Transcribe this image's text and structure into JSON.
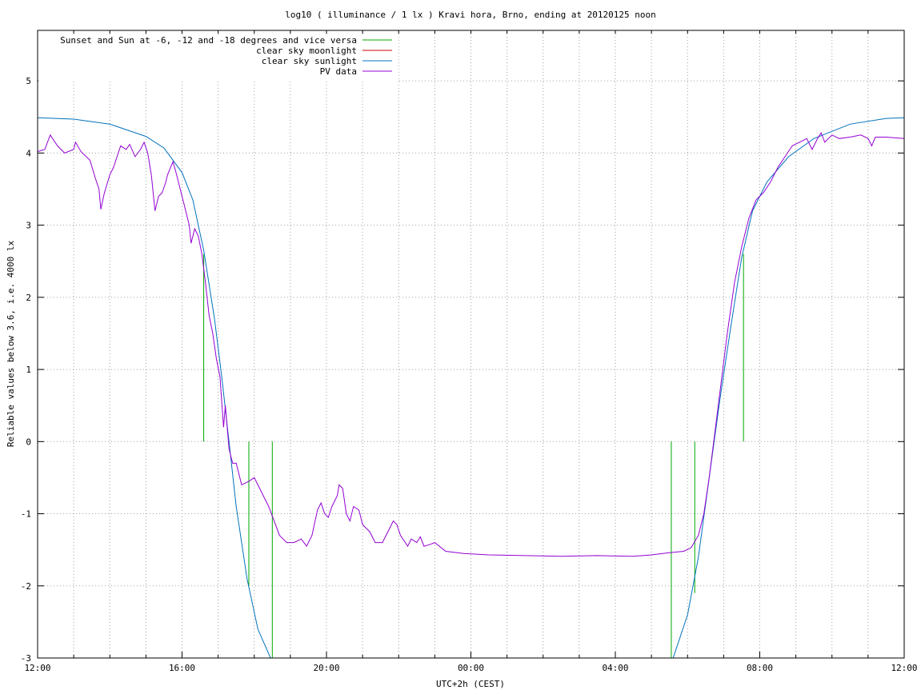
{
  "chart_data": {
    "type": "line",
    "title": "log10 ( illuminance / 1 lx ) Kravi hora, Brno, ending at 20120125 noon",
    "xlabel": "UTC+2h (CEST)",
    "ylabel": "Reliable values below 3.6, i.e. 4000 lx",
    "x_unit": "hours since 12:00",
    "xlim": [
      0,
      24
    ],
    "ylim": [
      -3,
      5.7
    ],
    "x_ticks": [
      {
        "x": 0,
        "label": "12:00"
      },
      {
        "x": 4,
        "label": "16:00"
      },
      {
        "x": 8,
        "label": "20:00"
      },
      {
        "x": 12,
        "label": "00:00"
      },
      {
        "x": 16,
        "label": "04:00"
      },
      {
        "x": 20,
        "label": "08:00"
      },
      {
        "x": 24,
        "label": "12:00"
      }
    ],
    "y_ticks": [
      {
        "y": -3,
        "label": "-3"
      },
      {
        "y": -2,
        "label": "-2"
      },
      {
        "y": -1,
        "label": "-1"
      },
      {
        "y": 0,
        "label": "0"
      },
      {
        "y": 1,
        "label": "1"
      },
      {
        "y": 2,
        "label": "2"
      },
      {
        "y": 3,
        "label": "3"
      },
      {
        "y": 4,
        "label": "4"
      },
      {
        "y": 5,
        "label": "5"
      }
    ],
    "grid": true,
    "legend_position": "top-left",
    "series": [
      {
        "name": "Sunset and Sun at -6, -12 and -18 degrees and vice versa",
        "color": "#00aa00",
        "style": "impulses",
        "points": [
          [
            4.6,
            2.6
          ],
          [
            5.85,
            -2.0
          ],
          [
            6.5,
            -3.0
          ],
          [
            17.55,
            -3.0
          ],
          [
            18.2,
            -2.1
          ],
          [
            19.55,
            2.6
          ]
        ]
      },
      {
        "name": "clear sky moonlight",
        "color": "#cc0000",
        "style": "line",
        "points": []
      },
      {
        "name": "clear sky sunlight",
        "color": "#0072bd",
        "style": "line",
        "points": [
          [
            0,
            4.49
          ],
          [
            1,
            4.47
          ],
          [
            2,
            4.4
          ],
          [
            3,
            4.23
          ],
          [
            3.5,
            4.07
          ],
          [
            4,
            3.73
          ],
          [
            4.3,
            3.35
          ],
          [
            4.6,
            2.65
          ],
          [
            4.9,
            1.7
          ],
          [
            5.1,
            0.9
          ],
          [
            5.3,
            0.0
          ],
          [
            5.5,
            -0.9
          ],
          [
            5.8,
            -1.9
          ],
          [
            6.1,
            -2.6
          ],
          [
            6.45,
            -3.0
          ],
          [
            17.6,
            -3.0
          ],
          [
            18.0,
            -2.4
          ],
          [
            18.3,
            -1.6
          ],
          [
            18.6,
            -0.5
          ],
          [
            18.9,
            0.6
          ],
          [
            19.2,
            1.6
          ],
          [
            19.5,
            2.55
          ],
          [
            19.8,
            3.2
          ],
          [
            20.2,
            3.6
          ],
          [
            20.8,
            3.95
          ],
          [
            21.5,
            4.2
          ],
          [
            22.5,
            4.4
          ],
          [
            23.5,
            4.48
          ],
          [
            24,
            4.49
          ]
        ]
      },
      {
        "name": "PV data",
        "color": "#9400d3",
        "style": "line",
        "points": [
          [
            0,
            4.02
          ],
          [
            0.2,
            4.05
          ],
          [
            0.35,
            4.25
          ],
          [
            0.55,
            4.1
          ],
          [
            0.75,
            4.0
          ],
          [
            1.0,
            4.05
          ],
          [
            1.05,
            4.15
          ],
          [
            1.2,
            4.02
          ],
          [
            1.45,
            3.9
          ],
          [
            1.6,
            3.65
          ],
          [
            1.7,
            3.5
          ],
          [
            1.75,
            3.22
          ],
          [
            1.85,
            3.45
          ],
          [
            2.0,
            3.7
          ],
          [
            2.1,
            3.8
          ],
          [
            2.2,
            3.95
          ],
          [
            2.3,
            4.1
          ],
          [
            2.45,
            4.05
          ],
          [
            2.55,
            4.12
          ],
          [
            2.7,
            3.95
          ],
          [
            2.85,
            4.05
          ],
          [
            2.95,
            4.15
          ],
          [
            3.05,
            4.0
          ],
          [
            3.15,
            3.7
          ],
          [
            3.25,
            3.2
          ],
          [
            3.35,
            3.4
          ],
          [
            3.45,
            3.45
          ],
          [
            3.55,
            3.6
          ],
          [
            3.6,
            3.7
          ],
          [
            3.75,
            3.88
          ],
          [
            3.85,
            3.7
          ],
          [
            3.95,
            3.5
          ],
          [
            4.05,
            3.3
          ],
          [
            4.2,
            3.0
          ],
          [
            4.25,
            2.75
          ],
          [
            4.35,
            2.95
          ],
          [
            4.45,
            2.85
          ],
          [
            4.55,
            2.6
          ],
          [
            4.65,
            2.2
          ],
          [
            4.75,
            1.75
          ],
          [
            4.85,
            1.5
          ],
          [
            4.95,
            1.15
          ],
          [
            5.05,
            0.9
          ],
          [
            5.15,
            0.2
          ],
          [
            5.2,
            0.5
          ],
          [
            5.3,
            -0.1
          ],
          [
            5.4,
            -0.3
          ],
          [
            5.5,
            -0.3
          ],
          [
            5.65,
            -0.6
          ],
          [
            5.85,
            -0.55
          ],
          [
            6.0,
            -0.5
          ],
          [
            6.2,
            -0.7
          ],
          [
            6.4,
            -0.9
          ],
          [
            6.55,
            -1.1
          ],
          [
            6.7,
            -1.3
          ],
          [
            6.9,
            -1.4
          ],
          [
            7.1,
            -1.4
          ],
          [
            7.3,
            -1.35
          ],
          [
            7.45,
            -1.45
          ],
          [
            7.6,
            -1.3
          ],
          [
            7.75,
            -0.95
          ],
          [
            7.85,
            -0.85
          ],
          [
            7.95,
            -1.0
          ],
          [
            8.05,
            -1.05
          ],
          [
            8.15,
            -0.9
          ],
          [
            8.3,
            -0.75
          ],
          [
            8.35,
            -0.6
          ],
          [
            8.45,
            -0.65
          ],
          [
            8.55,
            -1.0
          ],
          [
            8.65,
            -1.1
          ],
          [
            8.75,
            -0.9
          ],
          [
            8.9,
            -0.95
          ],
          [
            9.0,
            -1.15
          ],
          [
            9.2,
            -1.25
          ],
          [
            9.35,
            -1.4
          ],
          [
            9.55,
            -1.4
          ],
          [
            9.75,
            -1.2
          ],
          [
            9.85,
            -1.1
          ],
          [
            9.95,
            -1.15
          ],
          [
            10.05,
            -1.3
          ],
          [
            10.25,
            -1.45
          ],
          [
            10.35,
            -1.35
          ],
          [
            10.5,
            -1.4
          ],
          [
            10.6,
            -1.32
          ],
          [
            10.7,
            -1.45
          ],
          [
            10.85,
            -1.43
          ],
          [
            11.0,
            -1.4
          ],
          [
            11.3,
            -1.52
          ],
          [
            11.8,
            -1.55
          ],
          [
            12.5,
            -1.57
          ],
          [
            13.5,
            -1.58
          ],
          [
            14.5,
            -1.59
          ],
          [
            15.5,
            -1.58
          ],
          [
            16.5,
            -1.59
          ],
          [
            17.0,
            -1.57
          ],
          [
            17.5,
            -1.54
          ],
          [
            17.9,
            -1.52
          ],
          [
            18.1,
            -1.47
          ],
          [
            18.3,
            -1.3
          ],
          [
            18.45,
            -1.0
          ],
          [
            18.6,
            -0.5
          ],
          [
            18.75,
            0.1
          ],
          [
            18.9,
            0.7
          ],
          [
            19.1,
            1.5
          ],
          [
            19.3,
            2.2
          ],
          [
            19.5,
            2.7
          ],
          [
            19.7,
            3.1
          ],
          [
            19.9,
            3.35
          ],
          [
            20.1,
            3.45
          ],
          [
            20.3,
            3.6
          ],
          [
            20.5,
            3.8
          ],
          [
            20.7,
            3.95
          ],
          [
            20.9,
            4.1
          ],
          [
            21.1,
            4.15
          ],
          [
            21.3,
            4.2
          ],
          [
            21.45,
            4.05
          ],
          [
            21.6,
            4.2
          ],
          [
            21.7,
            4.28
          ],
          [
            21.8,
            4.15
          ],
          [
            21.9,
            4.2
          ],
          [
            22.0,
            4.25
          ],
          [
            22.2,
            4.2
          ],
          [
            22.5,
            4.22
          ],
          [
            22.8,
            4.25
          ],
          [
            23.0,
            4.2
          ],
          [
            23.1,
            4.1
          ],
          [
            23.2,
            4.22
          ],
          [
            23.5,
            4.22
          ],
          [
            24,
            4.2
          ]
        ]
      }
    ]
  }
}
